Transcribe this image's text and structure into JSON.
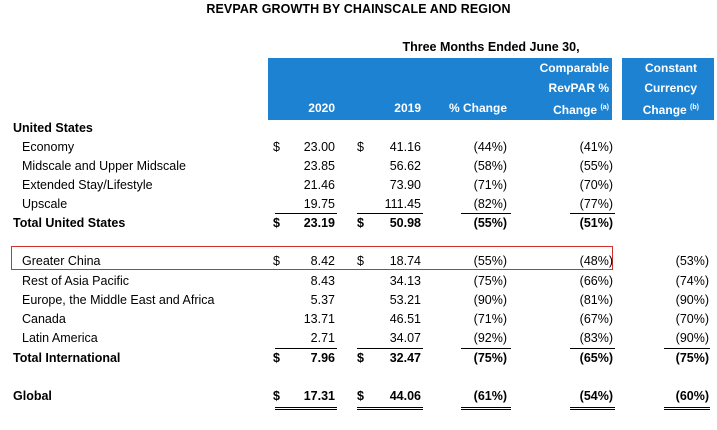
{
  "title": "REVPAR GROWTH BY CHAINSCALE AND REGION",
  "period": "Three Months Ended June 30,",
  "headers": {
    "col_2020": "2020",
    "col_2019": "2019",
    "pct_change": "% Change",
    "comparable_l1": "Comparable",
    "comparable_l2": "RevPAR %",
    "comparable_l3": "Change",
    "comparable_note": "(a)",
    "constant_l1": "Constant",
    "constant_l2": "Currency",
    "constant_l3": "Change",
    "constant_note": "(b)"
  },
  "sections": {
    "us_title": "United States",
    "us_rows": [
      {
        "label": "Economy",
        "dollar": "$",
        "v2020": "23.00",
        "dollar2": "$",
        "v2019": "41.16",
        "chg": "(44%)",
        "cmp": "(41%)",
        "cc": ""
      },
      {
        "label": "Midscale and Upper Midscale",
        "dollar": "",
        "v2020": "23.85",
        "dollar2": "",
        "v2019": "56.62",
        "chg": "(58%)",
        "cmp": "(55%)",
        "cc": ""
      },
      {
        "label": "Extended Stay/Lifestyle",
        "dollar": "",
        "v2020": "21.46",
        "dollar2": "",
        "v2019": "73.90",
        "chg": "(71%)",
        "cmp": "(70%)",
        "cc": ""
      },
      {
        "label": "Upscale",
        "dollar": "",
        "v2020": "19.75",
        "dollar2": "",
        "v2019": "111.45",
        "chg": "(82%)",
        "cmp": "(77%)",
        "cc": ""
      }
    ],
    "us_total": {
      "label": "Total United States",
      "dollar": "$",
      "v2020": "23.19",
      "dollar2": "$",
      "v2019": "50.98",
      "chg": "(55%)",
      "cmp": "(51%)",
      "cc": ""
    },
    "intl_rows": [
      {
        "label": "Greater China",
        "dollar": "$",
        "v2020": "8.42",
        "dollar2": "$",
        "v2019": "18.74",
        "chg": "(55%)",
        "cmp": "(48%)",
        "cc": "(53%)"
      },
      {
        "label": "Rest of Asia Pacific",
        "dollar": "",
        "v2020": "8.43",
        "dollar2": "",
        "v2019": "34.13",
        "chg": "(75%)",
        "cmp": "(66%)",
        "cc": "(74%)"
      },
      {
        "label": "Europe, the Middle East and Africa",
        "dollar": "",
        "v2020": "5.37",
        "dollar2": "",
        "v2019": "53.21",
        "chg": "(90%)",
        "cmp": "(81%)",
        "cc": "(90%)"
      },
      {
        "label": "Canada",
        "dollar": "",
        "v2020": "13.71",
        "dollar2": "",
        "v2019": "46.51",
        "chg": "(71%)",
        "cmp": "(67%)",
        "cc": "(70%)"
      },
      {
        "label": "Latin America",
        "dollar": "",
        "v2020": "2.71",
        "dollar2": "",
        "v2019": "34.07",
        "chg": "(92%)",
        "cmp": "(83%)",
        "cc": "(90%)"
      }
    ],
    "intl_total": {
      "label": "Total International",
      "dollar": "$",
      "v2020": "7.96",
      "dollar2": "$",
      "v2019": "32.47",
      "chg": "(75%)",
      "cmp": "(65%)",
      "cc": "(75%)"
    },
    "global": {
      "label": "Global",
      "dollar": "$",
      "v2020": "17.31",
      "dollar2": "$",
      "v2019": "44.06",
      "chg": "(61%)",
      "cmp": "(54%)",
      "cc": "(60%)"
    }
  },
  "highlight_color": "#d0312d",
  "header_color": "#1e82d2"
}
